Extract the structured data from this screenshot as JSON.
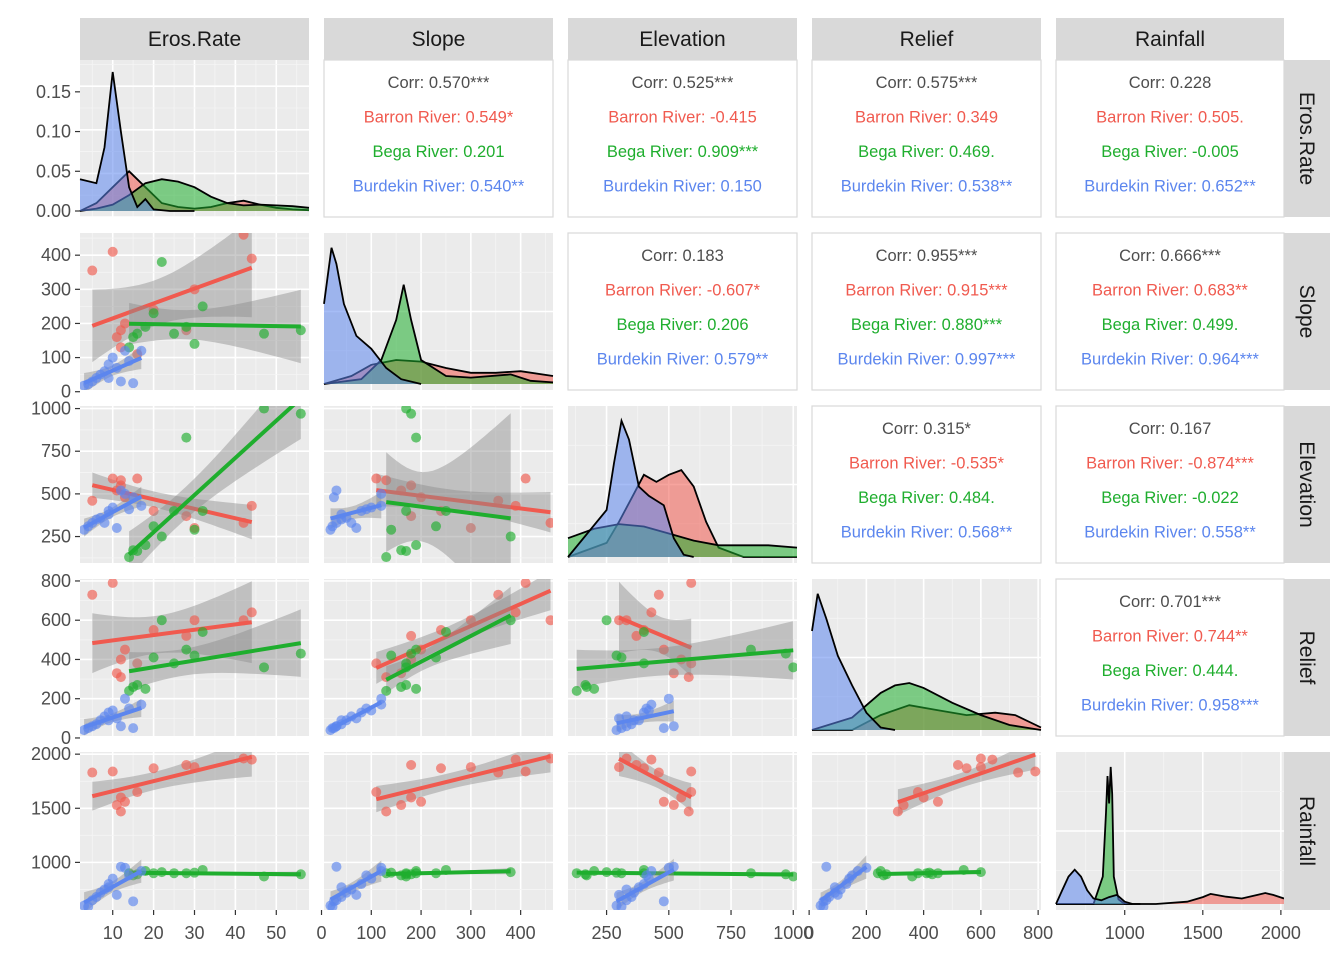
{
  "chart_data": {
    "type": "scatter",
    "title": "",
    "variables": [
      "Eros.Rate",
      "Slope",
      "Elevation",
      "Relief",
      "Rainfall"
    ],
    "colors": {
      "Barron River": "#f05a4f",
      "Bega River": "#1fae2e",
      "Burdekin River": "#5c86ee",
      "overall": "#4d4d4d",
      "panel_bg": "#ebebeb",
      "strip_bg": "#d9d9d9",
      "ribbon": "#8c8c8c"
    },
    "axes": {
      "Eros.Rate": {
        "lim": [
          2,
          58
        ],
        "ticks": [
          10,
          20,
          30,
          40,
          50
        ],
        "tick_labels": [
          "10",
          "20",
          "30",
          "40",
          "50"
        ],
        "density_ylim": [
          0,
          0.18
        ],
        "density_ticks": [
          0.0,
          0.05,
          0.1,
          0.15
        ],
        "density_tick_labels": [
          "0.00",
          "0.05",
          "0.10",
          "0.15"
        ]
      },
      "Slope": {
        "lim": [
          5,
          465
        ],
        "ticks": [
          0,
          100,
          200,
          300,
          400
        ],
        "tick_labels": [
          "0",
          "100",
          "200",
          "300",
          "400"
        ]
      },
      "Elevation": {
        "lim": [
          95,
          1015
        ],
        "ticks": [
          250,
          500,
          750,
          1000
        ],
        "tick_labels": [
          "250",
          "500",
          "750",
          "1000"
        ]
      },
      "Relief": {
        "lim": [
          10,
          810
        ],
        "ticks": [
          0,
          200,
          400,
          600,
          800
        ],
        "tick_labels": [
          "0",
          "200",
          "400",
          "600",
          "800"
        ]
      },
      "Rainfall": {
        "lim": [
          560,
          2020
        ],
        "ticks": [
          1000,
          1500,
          2000
        ],
        "tick_labels": [
          "1000",
          "1500",
          "2000"
        ]
      }
    },
    "correlations": [
      {
        "row": 0,
        "col": 1,
        "overall": "Corr: 0.570***",
        "barron": "Barron River: 0.549*",
        "bega": "Bega River: 0.201",
        "burdekin": "Burdekin River: 0.540**"
      },
      {
        "row": 0,
        "col": 2,
        "overall": "Corr: 0.525***",
        "barron": "Barron River: -0.415",
        "bega": "Bega River: 0.909***",
        "burdekin": "Burdekin River: 0.150"
      },
      {
        "row": 0,
        "col": 3,
        "overall": "Corr: 0.575***",
        "barron": "Barron River: 0.349",
        "bega": "Bega River: 0.469.",
        "burdekin": "Burdekin River: 0.538**"
      },
      {
        "row": 0,
        "col": 4,
        "overall": "Corr: 0.228",
        "barron": "Barron River: 0.505.",
        "bega": "Bega River: -0.005",
        "burdekin": "Burdekin River: 0.652**"
      },
      {
        "row": 1,
        "col": 2,
        "overall": "Corr: 0.183",
        "barron": "Barron River: -0.607*",
        "bega": "Bega River: 0.206",
        "burdekin": "Burdekin River: 0.579**"
      },
      {
        "row": 1,
        "col": 3,
        "overall": "Corr: 0.955***",
        "barron": "Barron River: 0.915***",
        "bega": "Bega River: 0.880***",
        "burdekin": "Burdekin River: 0.997***"
      },
      {
        "row": 1,
        "col": 4,
        "overall": "Corr: 0.666***",
        "barron": "Barron River: 0.683**",
        "bega": "Bega River: 0.499.",
        "burdekin": "Burdekin River: 0.964***"
      },
      {
        "row": 2,
        "col": 3,
        "overall": "Corr: 0.315*",
        "barron": "Barron River: -0.535*",
        "bega": "Bega River: 0.484.",
        "burdekin": "Burdekin River: 0.568**"
      },
      {
        "row": 2,
        "col": 4,
        "overall": "Corr: 0.167",
        "barron": "Barron River: -0.874***",
        "bega": "Bega River: -0.022",
        "burdekin": "Burdekin River: 0.558**"
      },
      {
        "row": 3,
        "col": 4,
        "overall": "Corr: 0.701***",
        "barron": "Barron River: 0.744**",
        "bega": "Bega River: 0.444.",
        "burdekin": "Burdekin River: 0.958***"
      }
    ],
    "groups": [
      {
        "name": "Barron River",
        "points": [
          [
            5,
            355,
            460,
            730,
            1830
          ],
          [
            10,
            410,
            590,
            790,
            1840
          ],
          [
            11,
            160,
            520,
            330,
            1530
          ],
          [
            12,
            130,
            580,
            310,
            1470
          ],
          [
            13,
            200,
            480,
            450,
            1560
          ],
          [
            20,
            240,
            400,
            550,
            1870
          ],
          [
            30,
            300,
            300,
            600,
            1880
          ],
          [
            42,
            460,
            330,
            600,
            1960
          ],
          [
            44,
            390,
            430,
            640,
            1950
          ],
          [
            12,
            180,
            550,
            400,
            1600
          ],
          [
            16,
            110,
            590,
            380,
            1650
          ],
          [
            28,
            180,
            370,
            520,
            1900
          ]
        ]
      },
      {
        "name": "Bega River",
        "points": [
          [
            14,
            130,
            130,
            240,
            900
          ],
          [
            15,
            160,
            170,
            260,
            880
          ],
          [
            16,
            170,
            165,
            270,
            890
          ],
          [
            18,
            190,
            200,
            250,
            920
          ],
          [
            20,
            230,
            310,
            410,
            900
          ],
          [
            22,
            380,
            250,
            600,
            910
          ],
          [
            25,
            170,
            400,
            380,
            900
          ],
          [
            28,
            190,
            830,
            450,
            900
          ],
          [
            32,
            250,
            400,
            540,
            930
          ],
          [
            47,
            170,
            1000,
            360,
            870
          ],
          [
            56,
            180,
            970,
            430,
            890
          ],
          [
            30,
            140,
            290,
            420,
            905
          ]
        ]
      },
      {
        "name": "Burdekin River",
        "points": [
          [
            3,
            18,
            290,
            40,
            600
          ],
          [
            4,
            22,
            310,
            50,
            590
          ],
          [
            5,
            30,
            330,
            60,
            650
          ],
          [
            6,
            40,
            350,
            70,
            680
          ],
          [
            7,
            50,
            360,
            90,
            720
          ],
          [
            8,
            60,
            330,
            110,
            750
          ],
          [
            9,
            80,
            400,
            130,
            800
          ],
          [
            10,
            100,
            420,
            140,
            850
          ],
          [
            11,
            70,
            300,
            100,
            700
          ],
          [
            12,
            30,
            520,
            60,
            960
          ],
          [
            13,
            120,
            500,
            200,
            950
          ],
          [
            15,
            25,
            480,
            50,
            640
          ],
          [
            17,
            120,
            430,
            170,
            920
          ],
          [
            9,
            40,
            380,
            90,
            770
          ],
          [
            14,
            90,
            410,
            150,
            880
          ]
        ]
      }
    ],
    "diagonal_densities": {
      "Eros.Rate": [
        {
          "group": "Barron River",
          "x": [
            2,
            6,
            10,
            14,
            18,
            22,
            26,
            30,
            34,
            38,
            42,
            46,
            50,
            54,
            58
          ],
          "y": [
            0.0,
            0.01,
            0.03,
            0.05,
            0.03,
            0.01,
            0.005,
            0.003,
            0.005,
            0.01,
            0.013,
            0.008,
            0.004,
            0.002,
            0.001
          ]
        },
        {
          "group": "Bega River",
          "x": [
            2,
            6,
            10,
            14,
            18,
            22,
            26,
            30,
            34,
            38,
            42,
            46,
            50,
            54,
            58
          ],
          "y": [
            0.0,
            0.003,
            0.008,
            0.02,
            0.035,
            0.04,
            0.037,
            0.03,
            0.018,
            0.01,
            0.007,
            0.008,
            0.007,
            0.006,
            0.004
          ]
        },
        {
          "group": "Burdekin River",
          "x": [
            2,
            6,
            8,
            10,
            12,
            14,
            16,
            18,
            20,
            24,
            30
          ],
          "y": [
            0.04,
            0.035,
            0.08,
            0.175,
            0.1,
            0.03,
            0.005,
            0.015,
            0.002,
            0.0,
            0.0
          ]
        }
      ],
      "Slope": [
        {
          "group": "Barron River",
          "x": [
            5,
            60,
            100,
            150,
            200,
            250,
            300,
            350,
            400,
            465
          ],
          "y": [
            0.0,
            0.0005,
            0.0012,
            0.0015,
            0.0014,
            0.001,
            0.0007,
            0.0007,
            0.0008,
            0.0005
          ]
        },
        {
          "group": "Bega River",
          "x": [
            5,
            80,
            120,
            150,
            165,
            180,
            200,
            250,
            300,
            380,
            420,
            465
          ],
          "y": [
            0.0,
            0.0003,
            0.0015,
            0.004,
            0.0062,
            0.004,
            0.0015,
            0.0005,
            0.0004,
            0.0006,
            0.0002,
            0.0001
          ]
        },
        {
          "group": "Burdekin River",
          "x": [
            5,
            20,
            30,
            45,
            70,
            100,
            130,
            160,
            200
          ],
          "y": [
            0.005,
            0.0085,
            0.0075,
            0.005,
            0.003,
            0.0022,
            0.001,
            0.0003,
            0.0
          ]
        }
      ],
      "Elevation": [
        {
          "group": "Barron River",
          "x": [
            95,
            250,
            300,
            350,
            400,
            450,
            500,
            550,
            600,
            650,
            700,
            800,
            1015
          ],
          "y": [
            0.0,
            0.0006,
            0.0015,
            0.0025,
            0.0035,
            0.0032,
            0.0035,
            0.0037,
            0.003,
            0.0015,
            0.0004,
            0.0,
            0.0
          ]
        },
        {
          "group": "Bega River",
          "x": [
            95,
            200,
            300,
            400,
            500,
            600,
            700,
            800,
            900,
            1015
          ],
          "y": [
            0.0008,
            0.0012,
            0.0014,
            0.0013,
            0.001,
            0.0007,
            0.0005,
            0.0005,
            0.0005,
            0.0004
          ]
        },
        {
          "group": "Burdekin River",
          "x": [
            95,
            250,
            280,
            310,
            340,
            380,
            420,
            480,
            520,
            560,
            600
          ],
          "y": [
            0.0,
            0.002,
            0.004,
            0.0058,
            0.005,
            0.003,
            0.0026,
            0.0022,
            0.0008,
            0.0001,
            0.0
          ]
        }
      ],
      "Relief": [
        {
          "group": "Barron River",
          "x": [
            10,
            150,
            250,
            350,
            450,
            550,
            650,
            720,
            810
          ],
          "y": [
            0.0,
            0.0,
            0.0006,
            0.001,
            0.0008,
            0.0006,
            0.0007,
            0.0006,
            0.0001
          ]
        },
        {
          "group": "Bega River",
          "x": [
            10,
            150,
            250,
            300,
            350,
            400,
            500,
            600,
            700,
            810
          ],
          "y": [
            0.0,
            0.0005,
            0.0015,
            0.0018,
            0.0019,
            0.0017,
            0.0011,
            0.0006,
            0.0002,
            0.0
          ]
        },
        {
          "group": "Burdekin River",
          "x": [
            10,
            30,
            60,
            100,
            150,
            200,
            250,
            300
          ],
          "y": [
            0.004,
            0.0055,
            0.0045,
            0.003,
            0.0018,
            0.0007,
            0.0001,
            0.0
          ]
        }
      ],
      "Rainfall": [
        {
          "group": "Barron River",
          "x": [
            560,
            1200,
            1400,
            1500,
            1550,
            1650,
            1750,
            1850,
            1900,
            1950,
            2020
          ],
          "y": [
            0.0,
            0.0,
            0.0005,
            0.0015,
            0.0022,
            0.0016,
            0.0012,
            0.002,
            0.0024,
            0.002,
            0.0012
          ]
        },
        {
          "group": "Bega River",
          "x": [
            560,
            800,
            860,
            880,
            890,
            900,
            910,
            920,
            930,
            960,
            1000,
            1100
          ],
          "y": [
            0.0,
            0.0,
            0.006,
            0.02,
            0.028,
            0.022,
            0.03,
            0.024,
            0.006,
            0.001,
            0.0,
            0.0
          ]
        },
        {
          "group": "Burdekin River",
          "x": [
            560,
            600,
            640,
            680,
            720,
            760,
            800,
            850,
            900,
            950,
            1000,
            1050
          ],
          "y": [
            0.0,
            0.003,
            0.006,
            0.0075,
            0.006,
            0.003,
            0.0012,
            0.0008,
            0.0015,
            0.002,
            0.0005,
            0.0
          ]
        }
      ]
    },
    "xlabel": "",
    "ylabel": "",
    "grid": true,
    "legend": "none"
  }
}
